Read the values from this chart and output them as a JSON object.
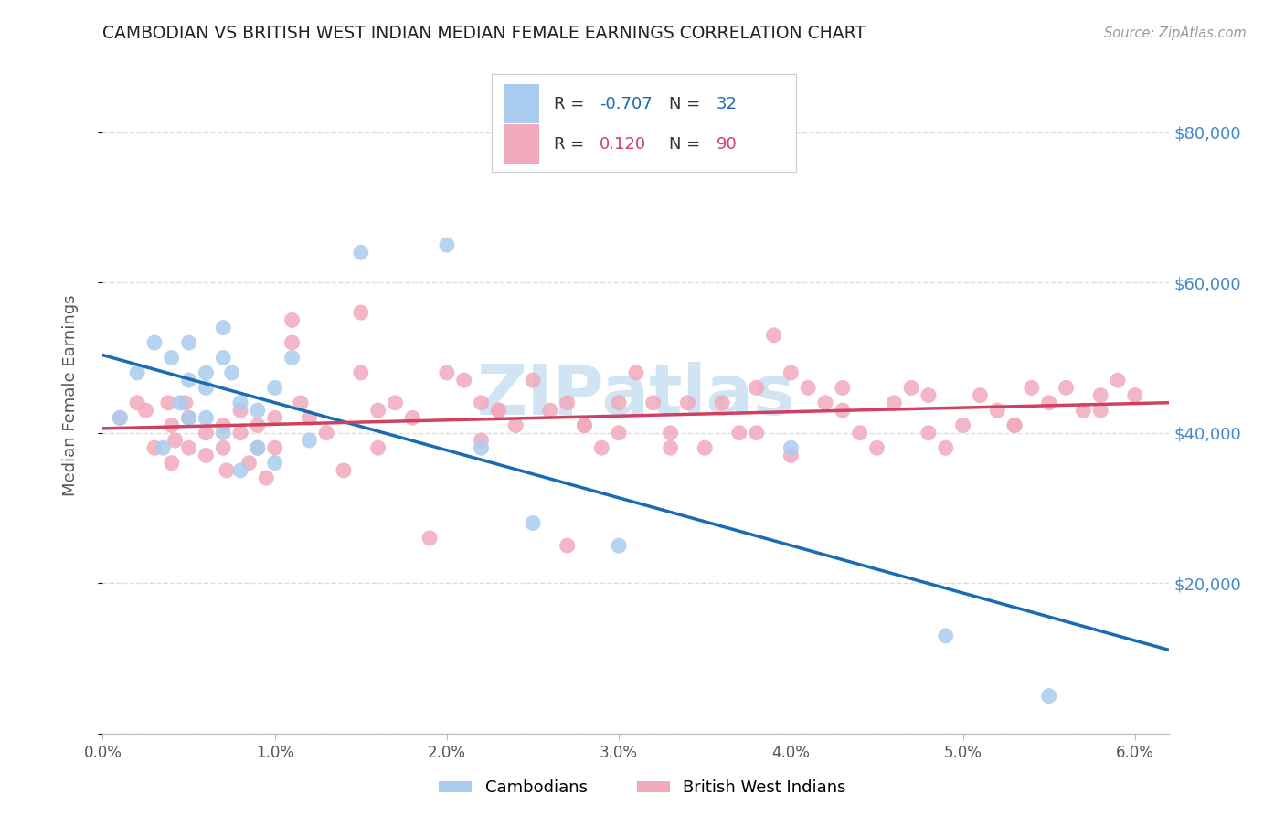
{
  "title": "CAMBODIAN VS BRITISH WEST INDIAN MEDIAN FEMALE EARNINGS CORRELATION CHART",
  "source": "Source: ZipAtlas.com",
  "ylabel": "Median Female Earnings",
  "xlim": [
    0.0,
    0.062
  ],
  "ylim": [
    0,
    90000
  ],
  "xticks": [
    0.0,
    0.01,
    0.02,
    0.03,
    0.04,
    0.05,
    0.06
  ],
  "xtick_labels": [
    "0.0%",
    "1.0%",
    "2.0%",
    "3.0%",
    "4.0%",
    "5.0%",
    "6.0%"
  ],
  "yticks_right": [
    20000,
    40000,
    60000,
    80000
  ],
  "ytick_labels_right": [
    "$20,000",
    "$40,000",
    "$60,000",
    "$80,000"
  ],
  "cambodian_color": "#aaccee",
  "bwi_color": "#f0aabc",
  "cambodian_line_color": "#1a6bb5",
  "bwi_line_color": "#d04060",
  "cambodian_R": "-0.707",
  "cambodian_N": "32",
  "bwi_R": "0.120",
  "bwi_N": "90",
  "grid_color": "#dddddd",
  "watermark": "ZIPatlas",
  "watermark_color": "#d0e4f4",
  "background_color": "#ffffff",
  "right_axis_color": "#4488cc",
  "cam_x": [
    0.001,
    0.003,
    0.002,
    0.004,
    0.0045,
    0.0035,
    0.005,
    0.005,
    0.005,
    0.006,
    0.006,
    0.006,
    0.007,
    0.007,
    0.007,
    0.0075,
    0.008,
    0.008,
    0.009,
    0.009,
    0.01,
    0.01,
    0.011,
    0.012,
    0.015,
    0.02,
    0.022,
    0.025,
    0.03,
    0.04,
    0.049,
    0.055
  ],
  "cam_y": [
    42000,
    52000,
    48000,
    50000,
    44000,
    38000,
    52000,
    47000,
    42000,
    48000,
    46000,
    42000,
    54000,
    50000,
    40000,
    48000,
    44000,
    35000,
    43000,
    38000,
    46000,
    36000,
    50000,
    39000,
    64000,
    65000,
    38000,
    28000,
    25000,
    38000,
    13000,
    5000
  ],
  "bwi_x": [
    0.001,
    0.002,
    0.003,
    0.0025,
    0.004,
    0.004,
    0.0038,
    0.0042,
    0.005,
    0.005,
    0.0048,
    0.006,
    0.006,
    0.007,
    0.007,
    0.0072,
    0.008,
    0.008,
    0.0085,
    0.009,
    0.009,
    0.0095,
    0.01,
    0.01,
    0.011,
    0.011,
    0.0115,
    0.012,
    0.013,
    0.014,
    0.015,
    0.015,
    0.016,
    0.016,
    0.017,
    0.018,
    0.019,
    0.02,
    0.021,
    0.022,
    0.022,
    0.023,
    0.024,
    0.025,
    0.026,
    0.027,
    0.027,
    0.028,
    0.029,
    0.03,
    0.03,
    0.031,
    0.032,
    0.033,
    0.034,
    0.035,
    0.036,
    0.037,
    0.038,
    0.039,
    0.04,
    0.04,
    0.041,
    0.042,
    0.043,
    0.044,
    0.045,
    0.046,
    0.047,
    0.048,
    0.049,
    0.05,
    0.051,
    0.052,
    0.053,
    0.054,
    0.055,
    0.056,
    0.057,
    0.058,
    0.059,
    0.06,
    0.058,
    0.053,
    0.048,
    0.043,
    0.038,
    0.033,
    0.028,
    0.023
  ],
  "bwi_y": [
    42000,
    44000,
    38000,
    43000,
    41000,
    36000,
    44000,
    39000,
    42000,
    38000,
    44000,
    40000,
    37000,
    41000,
    38000,
    35000,
    43000,
    40000,
    36000,
    41000,
    38000,
    34000,
    42000,
    38000,
    55000,
    52000,
    44000,
    42000,
    40000,
    35000,
    56000,
    48000,
    43000,
    38000,
    44000,
    42000,
    26000,
    48000,
    47000,
    44000,
    39000,
    43000,
    41000,
    47000,
    43000,
    25000,
    44000,
    41000,
    38000,
    44000,
    40000,
    48000,
    44000,
    40000,
    44000,
    38000,
    44000,
    40000,
    46000,
    53000,
    37000,
    48000,
    46000,
    44000,
    46000,
    40000,
    38000,
    44000,
    46000,
    40000,
    38000,
    41000,
    45000,
    43000,
    41000,
    46000,
    44000,
    46000,
    43000,
    45000,
    47000,
    45000,
    43000,
    41000,
    45000,
    43000,
    40000,
    38000,
    41000,
    43000
  ]
}
